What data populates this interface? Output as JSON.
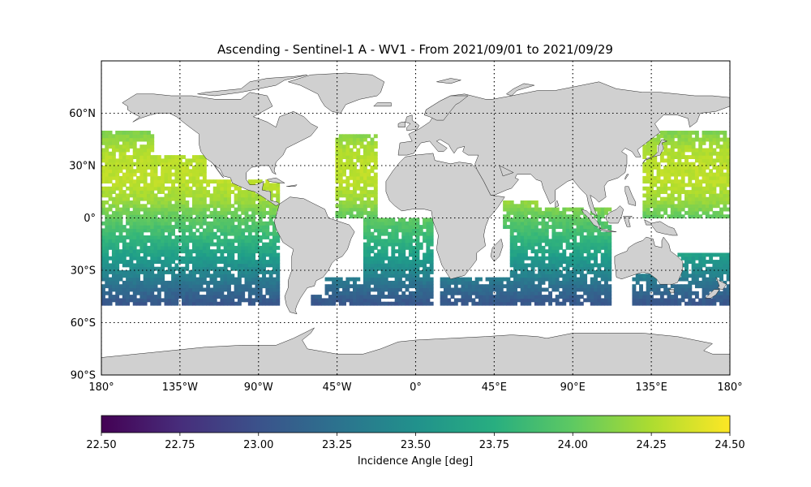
{
  "title": "Ascending - Sentinel-1 A - WV1 - From 2021/09/01 to 2021/09/29",
  "map": {
    "projection": "plate-carree",
    "lon_range": [
      -180,
      180
    ],
    "lat_range": [
      -90,
      90
    ],
    "land_color": "#d0d0d0",
    "coast_color": "#222222",
    "gridlines": "dotted",
    "lat_ticks": [
      {
        "value": 60,
        "label": "60°N"
      },
      {
        "value": 30,
        "label": "30°N"
      },
      {
        "value": 0,
        "label": "0°"
      },
      {
        "value": -30,
        "label": "30°S"
      },
      {
        "value": -60,
        "label": "60°S"
      },
      {
        "value": -90,
        "label": "90°S"
      }
    ],
    "lon_ticks": [
      {
        "value": -180,
        "label": "180°"
      },
      {
        "value": -135,
        "label": "135°W"
      },
      {
        "value": -90,
        "label": "90°W"
      },
      {
        "value": -45,
        "label": "45°W"
      },
      {
        "value": 0,
        "label": "0°"
      },
      {
        "value": 45,
        "label": "45°E"
      },
      {
        "value": 90,
        "label": "90°E"
      },
      {
        "value": 135,
        "label": "135°E"
      },
      {
        "value": 180,
        "label": "180°"
      }
    ]
  },
  "colorbar": {
    "label": "Incidence Angle [deg]",
    "colormap": "viridis",
    "range": [
      22.5,
      24.5
    ],
    "ticks": [
      "22.50",
      "22.75",
      "23.00",
      "23.25",
      "23.50",
      "23.75",
      "24.00",
      "24.25",
      "24.50"
    ]
  },
  "chart_data": {
    "type": "heatmap",
    "title": "Ascending - Sentinel-1 A - WV1 - From 2021/09/01 to 2021/09/29",
    "value_label": "Incidence Angle [deg]",
    "value_range": [
      22.5,
      24.5
    ],
    "angle_vs_latitude": [
      {
        "lat": 50,
        "value": 24.1
      },
      {
        "lat": 40,
        "value": 24.25
      },
      {
        "lat": 30,
        "value": 24.3
      },
      {
        "lat": 20,
        "value": 24.3
      },
      {
        "lat": 10,
        "value": 24.2
      },
      {
        "lat": 0,
        "value": 24.0
      },
      {
        "lat": -10,
        "value": 23.85
      },
      {
        "lat": -20,
        "value": 23.65
      },
      {
        "lat": -30,
        "value": 23.45
      },
      {
        "lat": -40,
        "value": 23.2
      },
      {
        "lat": -48,
        "value": 23.05
      }
    ],
    "swath_lat_range": [
      -50,
      50
    ],
    "swath_zones": [
      {
        "lon": [
          -180,
          -150
        ],
        "lat": [
          -50,
          50
        ]
      },
      {
        "lon": [
          -150,
          -120
        ],
        "lat": [
          -50,
          35
        ]
      },
      {
        "lon": [
          -120,
          -78
        ],
        "lat": [
          -50,
          22
        ]
      },
      {
        "lon": [
          -60,
          -45
        ],
        "lat": [
          -50,
          -45
        ]
      },
      {
        "lon": [
          -45,
          -22
        ],
        "lat": [
          0,
          48
        ]
      },
      {
        "lon": [
          -52,
          -30
        ],
        "lat": [
          -50,
          -35
        ]
      },
      {
        "lon": [
          -30,
          10
        ],
        "lat": [
          -50,
          0
        ]
      },
      {
        "lon": [
          15,
          55
        ],
        "lat": [
          -50,
          -35
        ]
      },
      {
        "lon": [
          50,
          70
        ],
        "lat": [
          -5,
          10
        ]
      },
      {
        "lon": [
          55,
          112
        ],
        "lat": [
          -50,
          5
        ]
      },
      {
        "lon": [
          125,
          180
        ],
        "lat": [
          -50,
          -20
        ]
      },
      {
        "lon": [
          130,
          180
        ],
        "lat": [
          0,
          50
        ]
      }
    ]
  }
}
